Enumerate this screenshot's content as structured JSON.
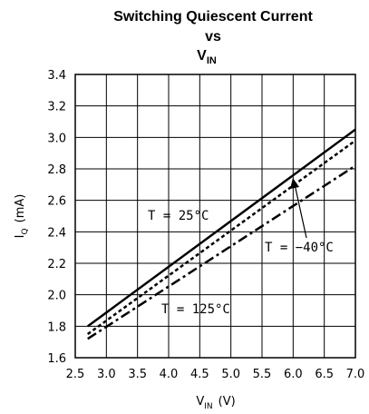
{
  "chart_data": {
    "type": "line",
    "title_line1": "Switching Quiescent Current",
    "title_line2": "vs",
    "title_line3_main": "V",
    "title_line3_sub": "IN",
    "xlabel_main": "V",
    "xlabel_sub": "IN",
    "xlabel_unit": "(V)",
    "ylabel_main": "I",
    "ylabel_sub": "Q",
    "ylabel_unit": "(mA)",
    "xlim": [
      2.5,
      7.0
    ],
    "ylim": [
      1.6,
      3.4
    ],
    "x_ticks": [
      "2.5",
      "3.0",
      "3.5",
      "4.0",
      "4.5",
      "5.0",
      "5.5",
      "6.0",
      "6.5",
      "7.0"
    ],
    "y_ticks": [
      "1.6",
      "1.8",
      "2.0",
      "2.2",
      "2.4",
      "2.6",
      "2.8",
      "3.0",
      "3.2",
      "3.4"
    ],
    "grid": true,
    "series": [
      {
        "label": "T = 25°C",
        "style": "solid",
        "x": [
          2.7,
          7.0
        ],
        "y": [
          1.8,
          3.05
        ]
      },
      {
        "label": "T = -40°C",
        "style": "dashed",
        "x": [
          2.7,
          7.0
        ],
        "y": [
          1.75,
          2.98
        ]
      },
      {
        "label": "T = 125°C",
        "style": "dash-dot",
        "x": [
          2.7,
          7.0
        ],
        "y": [
          1.72,
          2.82
        ]
      }
    ],
    "annotations": {
      "t25": "T = 25°C",
      "tm40": "T = −40°C",
      "t125": "T = 125°C"
    }
  }
}
